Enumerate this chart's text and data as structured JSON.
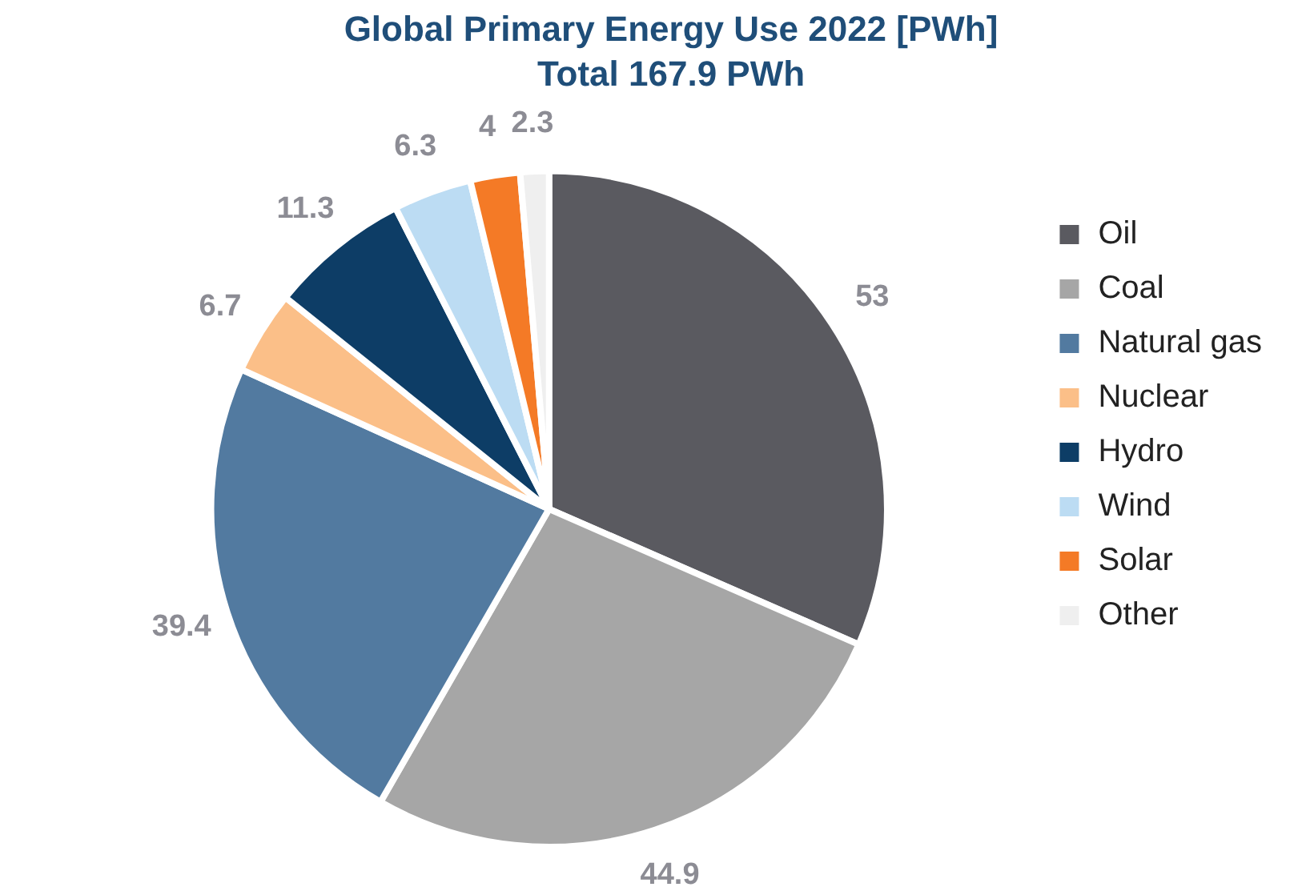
{
  "chart_data": {
    "type": "pie",
    "title": "Global Primary Energy Use 2022 [PWh]",
    "subtitle": "Total 167.9 PWh",
    "categories": [
      "Oil",
      "Coal",
      "Natural gas",
      "Nuclear",
      "Hydro",
      "Wind",
      "Solar",
      "Other"
    ],
    "values": [
      53,
      44.9,
      39.4,
      6.7,
      11.3,
      6.3,
      4,
      2.3
    ],
    "colors": [
      "#5a5a60",
      "#a6a6a6",
      "#527aa0",
      "#fbbf88",
      "#0d3d66",
      "#bcdcf3",
      "#f47a26",
      "#efefef"
    ],
    "data_labels": true,
    "legend": "right"
  }
}
